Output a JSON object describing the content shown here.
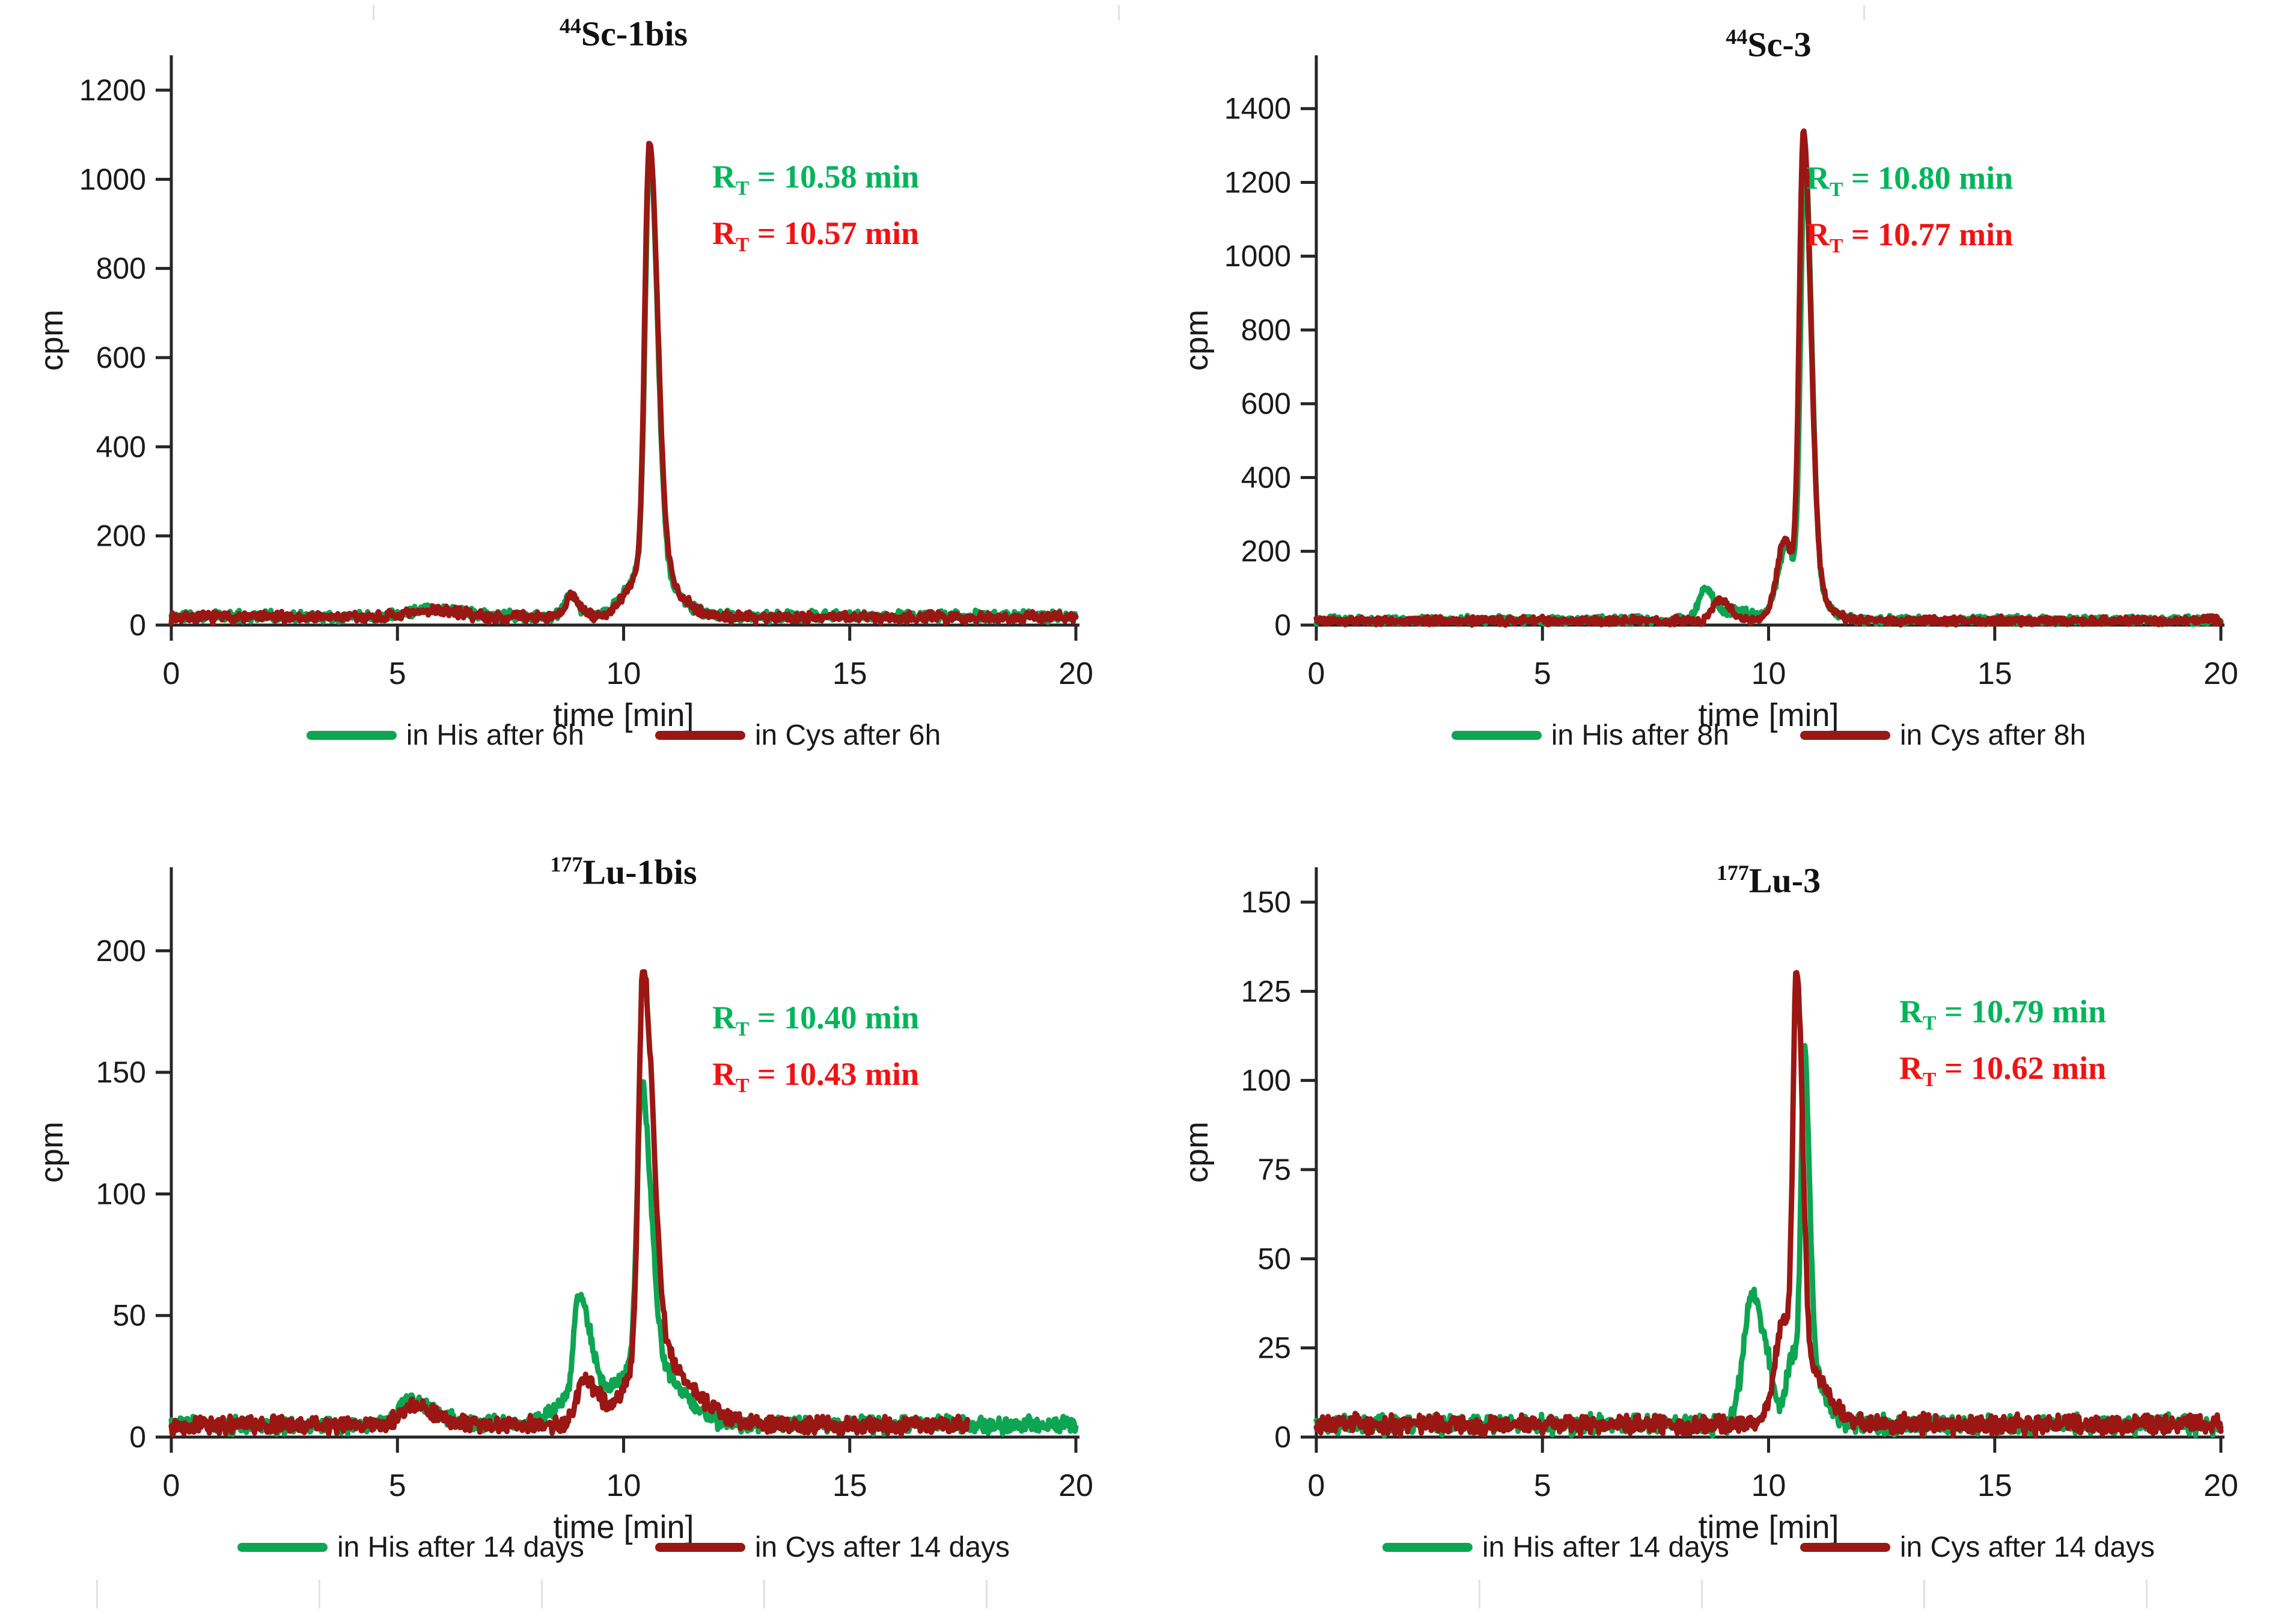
{
  "colors": {
    "his": "#0da551",
    "cys": "#9b1713",
    "rt_his": "#00b559",
    "rt_cys": "#f21212",
    "axis": "#262626",
    "text": "#1a1a1a"
  },
  "charts": [
    {
      "title_sup": "44",
      "title_main": "Sc-1bis",
      "rt_symbol": "R",
      "rt_sub": "T",
      "rt_his_text": " = 10.58 min",
      "rt_cys_text": " = 10.57 min",
      "legend": [
        {
          "label": "in His after 6h",
          "color": "his"
        },
        {
          "label": "in Cys after 6h",
          "color": "cys"
        }
      ],
      "chart_data": {
        "type": "line",
        "title": "44Sc-1bis",
        "xlabel": "time [min]",
        "ylabel": "cpm",
        "xlim": [
          0,
          20
        ],
        "ylim": [
          0,
          1200
        ],
        "xticks": [
          0,
          5,
          10,
          15,
          20
        ],
        "yticks": [
          0,
          200,
          400,
          600,
          800,
          1000,
          1200
        ],
        "grid": false,
        "legend_position": "bottom",
        "retention_time_min": {
          "his": 10.58,
          "cys": 10.57
        },
        "peak_height_cpm": {
          "his": 1050,
          "cys": 1090
        },
        "series": [
          {
            "name": "in His after 6h",
            "color": "his",
            "seed": 11,
            "baseline": 20,
            "noise": 14,
            "x_end": 20,
            "peaks": [
              [
                5.8,
                18,
                0.5,
                0.6
              ],
              [
                8.8,
                45,
                0.12,
                0.18
              ],
              [
                10.5,
                115,
                0.4,
                0.55
              ],
              [
                10.58,
                925,
                0.1,
                0.17
              ]
            ]
          },
          {
            "name": "in Cys after 6h",
            "color": "cys",
            "seed": 7,
            "baseline": 18,
            "noise": 14,
            "x_end": 20,
            "peaks": [
              [
                5.9,
                15,
                0.5,
                0.5
              ],
              [
                8.85,
                48,
                0.12,
                0.18
              ],
              [
                10.55,
                120,
                0.4,
                0.55
              ],
              [
                10.57,
                950,
                0.1,
                0.18
              ]
            ]
          }
        ]
      }
    },
    {
      "title_sup": "44",
      "title_main": "Sc-3",
      "rt_symbol": "R",
      "rt_sub": "T",
      "rt_his_text": " = 10.80 min",
      "rt_cys_text": " = 10.77 min",
      "legend": [
        {
          "label": "in His after 8h",
          "color": "his"
        },
        {
          "label": "in Cys after 8h",
          "color": "cys"
        }
      ],
      "chart_data": {
        "type": "line",
        "title": "44Sc-3",
        "xlabel": "time [min]",
        "ylabel": "cpm",
        "xlim": [
          0,
          20
        ],
        "ylim": [
          0,
          1450
        ],
        "xticks": [
          0,
          5,
          10,
          15,
          20
        ],
        "yticks": [
          0,
          200,
          400,
          600,
          800,
          1000,
          1200,
          1400
        ],
        "grid": false,
        "legend_position": "bottom",
        "retention_time_min": {
          "his": 10.8,
          "cys": 10.77
        },
        "peak_height_cpm": {
          "his": 1290,
          "cys": 1350
        },
        "series": [
          {
            "name": "in His after 8h",
            "color": "his",
            "seed": 23,
            "baseline": 14,
            "noise": 13,
            "x_end": 20,
            "peaks": [
              [
                8.6,
                88,
                0.14,
                0.2
              ],
              [
                9.3,
                28,
                0.2,
                0.3
              ],
              [
                10.38,
                135,
                0.18,
                0.12
              ],
              [
                10.72,
                110,
                0.35,
                0.4
              ],
              [
                10.8,
                1150,
                0.09,
                0.15
              ]
            ]
          },
          {
            "name": "in Cys after 8h",
            "color": "cys",
            "seed": 5,
            "baseline": 12,
            "noise": 13,
            "x_end": 20,
            "peaks": [
              [
                8.9,
                58,
                0.15,
                0.25
              ],
              [
                10.35,
                155,
                0.17,
                0.12
              ],
              [
                10.72,
                120,
                0.35,
                0.42
              ],
              [
                10.77,
                1210,
                0.09,
                0.16
              ]
            ]
          }
        ]
      }
    },
    {
      "title_sup": "177",
      "title_main": "Lu-1bis",
      "rt_symbol": "R",
      "rt_sub": "T",
      "rt_his_text": " = 10.40 min",
      "rt_cys_text": " = 10.43 min",
      "legend": [
        {
          "label": "in His after 14 days",
          "color": "his"
        },
        {
          "label": "in Cys after 14 days",
          "color": "cys"
        }
      ],
      "chart_data": {
        "type": "line",
        "title": "177Lu-1bis",
        "xlabel": "time [min]",
        "ylabel": "cpm",
        "xlim": [
          0,
          20
        ],
        "ylim": [
          0,
          220
        ],
        "xticks": [
          0,
          5,
          10,
          15,
          20
        ],
        "yticks": [
          0,
          50,
          100,
          150,
          200
        ],
        "grid": false,
        "legend_position": "bottom",
        "retention_time_min": {
          "his": 10.4,
          "cys": 10.43
        },
        "peak_height_cpm": {
          "his": 142,
          "cys": 195
        },
        "series": [
          {
            "name": "in His after 14 days",
            "color": "his",
            "seed": 31,
            "baseline": 5,
            "noise": 4,
            "x_end": 20,
            "peaks": [
              [
                5.3,
                10,
                0.3,
                0.5
              ],
              [
                9.0,
                40,
                0.1,
                0.25
              ],
              [
                9.1,
                14,
                0.5,
                0.7
              ],
              [
                10.4,
                112,
                0.1,
                0.2
              ],
              [
                10.5,
                26,
                0.45,
                0.7
              ]
            ]
          },
          {
            "name": "in Cys after 14 days",
            "color": "cys",
            "seed": 13,
            "baseline": 5,
            "noise": 4,
            "x_end": 17.6,
            "peaks": [
              [
                5.4,
                8,
                0.3,
                0.4
              ],
              [
                9.1,
                18,
                0.15,
                0.35
              ],
              [
                10.43,
                158,
                0.1,
                0.22
              ],
              [
                10.55,
                30,
                0.45,
                0.85
              ]
            ]
          }
        ]
      }
    },
    {
      "title_sup": "177",
      "title_main": "Lu-3",
      "rt_symbol": "R",
      "rt_sub": "T",
      "rt_his_text": " = 10.79 min",
      "rt_cys_text": " = 10.62 min",
      "legend": [
        {
          "label": "in His after 14 days",
          "color": "his"
        },
        {
          "label": "in Cys after 14 days",
          "color": "cys"
        }
      ],
      "chart_data": {
        "type": "line",
        "title": "177Lu-3",
        "xlabel": "time [min]",
        "ylabel": "cpm",
        "xlim": [
          0,
          20
        ],
        "ylim": [
          0,
          150
        ],
        "xticks": [
          0,
          5,
          10,
          15,
          20
        ],
        "yticks": [
          0,
          25,
          50,
          75,
          100,
          125,
          150
        ],
        "grid": false,
        "legend_position": "bottom",
        "retention_time_min": {
          "his": 10.79,
          "cys": 10.62
        },
        "peak_height_cpm": {
          "his": 109,
          "cys": 136
        },
        "series": [
          {
            "name": "in His after 14 days",
            "color": "his",
            "seed": 41,
            "baseline": 3.5,
            "noise": 3.2,
            "x_end": 20,
            "peaks": [
              [
                9.65,
                36,
                0.2,
                0.15
              ],
              [
                9.95,
                18,
                0.12,
                0.15
              ],
              [
                10.55,
                20,
                0.15,
                0.2
              ],
              [
                10.79,
                88,
                0.07,
                0.11
              ],
              [
                10.95,
                14,
                0.15,
                0.3
              ]
            ]
          },
          {
            "name": "in Cys after 14 days",
            "color": "cys",
            "seed": 3,
            "baseline": 3.5,
            "noise": 3.2,
            "x_end": 20,
            "peaks": [
              [
                10.3,
                24,
                0.18,
                0.15
              ],
              [
                10.62,
                112,
                0.08,
                0.13
              ],
              [
                10.75,
                16,
                0.3,
                0.5
              ]
            ]
          }
        ]
      }
    }
  ]
}
